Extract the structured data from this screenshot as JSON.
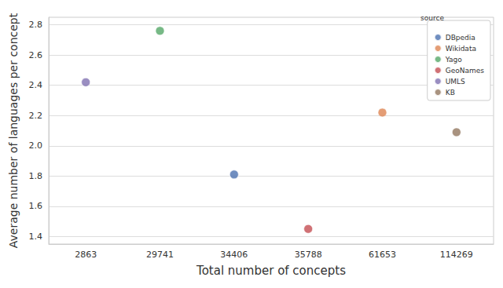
{
  "chart_data": {
    "type": "scatter",
    "x_label": "Total number of concepts",
    "y_label": "Average number of languages per concept",
    "categories": [
      "2863",
      "29741",
      "34406",
      "35788",
      "61653",
      "114269"
    ],
    "series": [
      {
        "name": "DBpedia",
        "color": "#4c72b0",
        "values": [
          null,
          null,
          1.81,
          null,
          null,
          null
        ]
      },
      {
        "name": "Wikidata",
        "color": "#dd8452",
        "values": [
          null,
          null,
          null,
          null,
          2.22,
          null
        ]
      },
      {
        "name": "Yago",
        "color": "#55a868",
        "values": [
          null,
          2.76,
          null,
          null,
          null,
          null
        ]
      },
      {
        "name": "GeoNames",
        "color": "#c44e52",
        "values": [
          null,
          null,
          null,
          1.45,
          null,
          null
        ]
      },
      {
        "name": "UMLS",
        "color": "#8172b2",
        "values": [
          2.42,
          null,
          null,
          null,
          null,
          null
        ]
      },
      {
        "name": "KB",
        "color": "#937860",
        "values": [
          null,
          null,
          null,
          null,
          null,
          2.09
        ]
      }
    ],
    "legend_title": "source",
    "legend": "upper right",
    "ylim": [
      1.35,
      2.85
    ],
    "yticks": [
      1.4,
      1.6,
      1.8,
      {
        "value": 2,
        "label": "2.0"
      },
      2.2,
      2.4,
      2.6,
      2.8
    ],
    "grid": true
  }
}
